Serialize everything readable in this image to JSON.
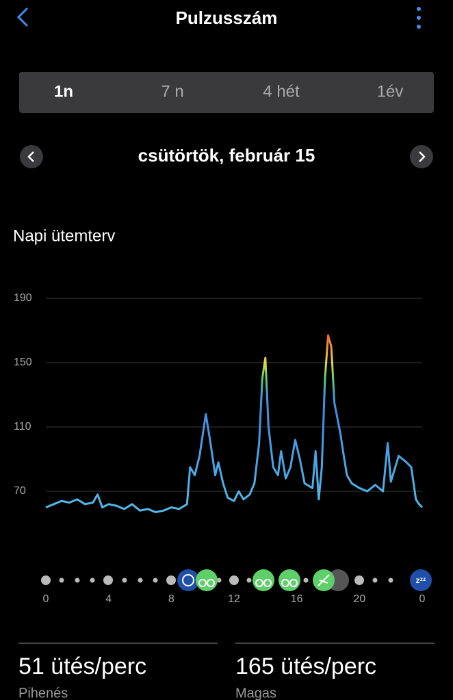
{
  "header": {
    "title": "Pulzusszám"
  },
  "tabs": {
    "items": [
      "1n",
      "7 n",
      "4 hét",
      "1év"
    ],
    "selected": 0
  },
  "date": "csütörtök, február 15",
  "chart_data": {
    "type": "line",
    "title": "Napi ütemterv",
    "color": "#4aa8e8",
    "x": [
      0,
      0.5,
      1,
      1.5,
      2,
      2.5,
      3,
      3.3,
      3.6,
      4,
      4.5,
      5,
      5.5,
      6,
      6.5,
      7,
      7.5,
      8,
      8.5,
      9,
      9.2,
      9.5,
      9.8,
      10.2,
      10.5,
      10.8,
      11,
      11.3,
      11.6,
      12,
      12.3,
      12.6,
      13,
      13.3,
      13.6,
      13.8,
      14,
      14.2,
      14.5,
      14.8,
      15,
      15.3,
      15.6,
      15.9,
      16.2,
      16.5,
      17,
      17.2,
      17.4,
      17.6,
      17.8,
      18,
      18.2,
      18.4,
      18.6,
      18.8,
      19,
      19.2,
      19.5,
      20,
      20.5,
      21,
      21.5,
      21.8,
      22,
      22.5,
      23,
      23.3,
      23.6,
      23.8,
      24
    ],
    "values": [
      60,
      62,
      64,
      63,
      65,
      62,
      63,
      68,
      60,
      62,
      61,
      59,
      62,
      58,
      59,
      57,
      58,
      60,
      59,
      62,
      85,
      80,
      92,
      118,
      100,
      80,
      88,
      75,
      66,
      64,
      70,
      65,
      68,
      75,
      100,
      140,
      153,
      110,
      85,
      80,
      95,
      78,
      85,
      102,
      90,
      75,
      72,
      95,
      65,
      85,
      140,
      167,
      160,
      125,
      115,
      105,
      92,
      80,
      75,
      72,
      70,
      74,
      70,
      100,
      76,
      92,
      88,
      85,
      65,
      62,
      60
    ],
    "xlim": [
      0,
      24
    ],
    "xticks": [
      0,
      4,
      8,
      12,
      16,
      20,
      {
        "value": 24,
        "label": "0"
      }
    ],
    "ylim": [
      48,
      190
    ],
    "yticks": [
      70,
      110,
      150,
      190
    ],
    "grid": true
  },
  "stats": [
    {
      "value": "51 ütés/perc",
      "label": "Pihenés"
    },
    {
      "value": "165 ütés/perc",
      "label": "Magas"
    }
  ]
}
